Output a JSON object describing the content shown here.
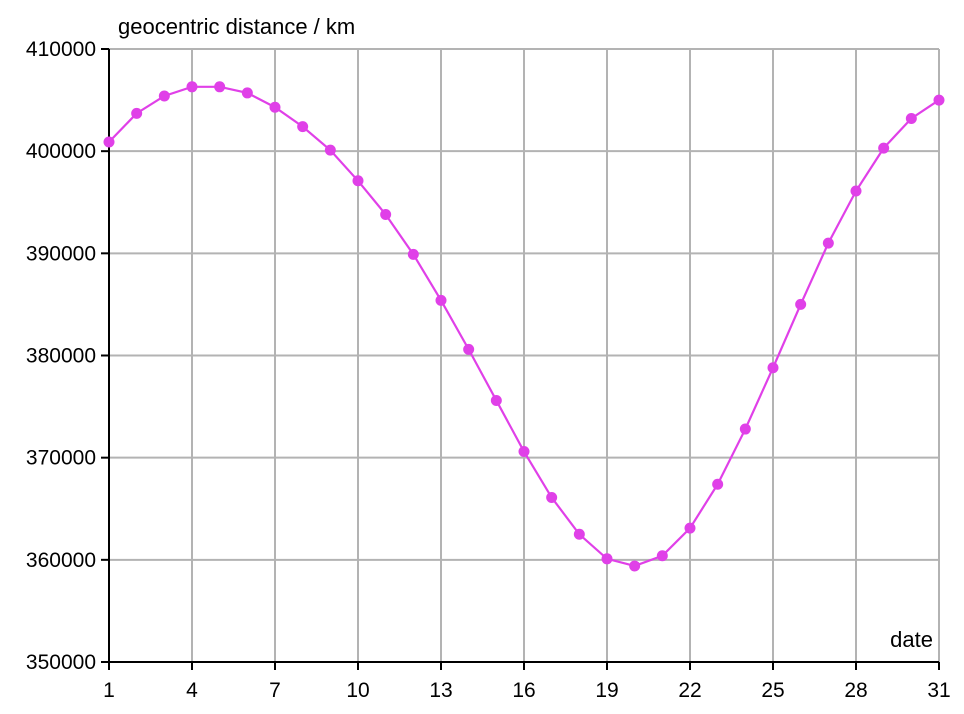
{
  "chart_data": {
    "type": "line",
    "ylabel": "geocentric distance / km",
    "xlabel": "date",
    "xlim": [
      1,
      31
    ],
    "ylim": [
      350000,
      410000
    ],
    "x_ticks": [
      1,
      4,
      7,
      10,
      13,
      16,
      19,
      22,
      25,
      28,
      31
    ],
    "y_ticks": [
      350000,
      360000,
      370000,
      380000,
      390000,
      400000,
      410000
    ],
    "grid": true,
    "colors": {
      "series": "#e040e8",
      "grid": "#b3b3b3",
      "axis": "#000000"
    },
    "series": [
      {
        "x": [
          1,
          2,
          3,
          4,
          5,
          6,
          7,
          8,
          9,
          10,
          11,
          12,
          13,
          14,
          15,
          16,
          17,
          18,
          19,
          20,
          21,
          22,
          23,
          24,
          25,
          26,
          27,
          28,
          29,
          30,
          31
        ],
        "values": [
          400900,
          403700,
          405400,
          406300,
          406300,
          405700,
          404300,
          402400,
          400100,
          397100,
          393800,
          389900,
          385400,
          380600,
          375600,
          370600,
          366100,
          362500,
          360100,
          359400,
          360400,
          363100,
          367400,
          372800,
          378800,
          385000,
          391000,
          396100,
          400300,
          403200,
          405000
        ]
      }
    ]
  }
}
